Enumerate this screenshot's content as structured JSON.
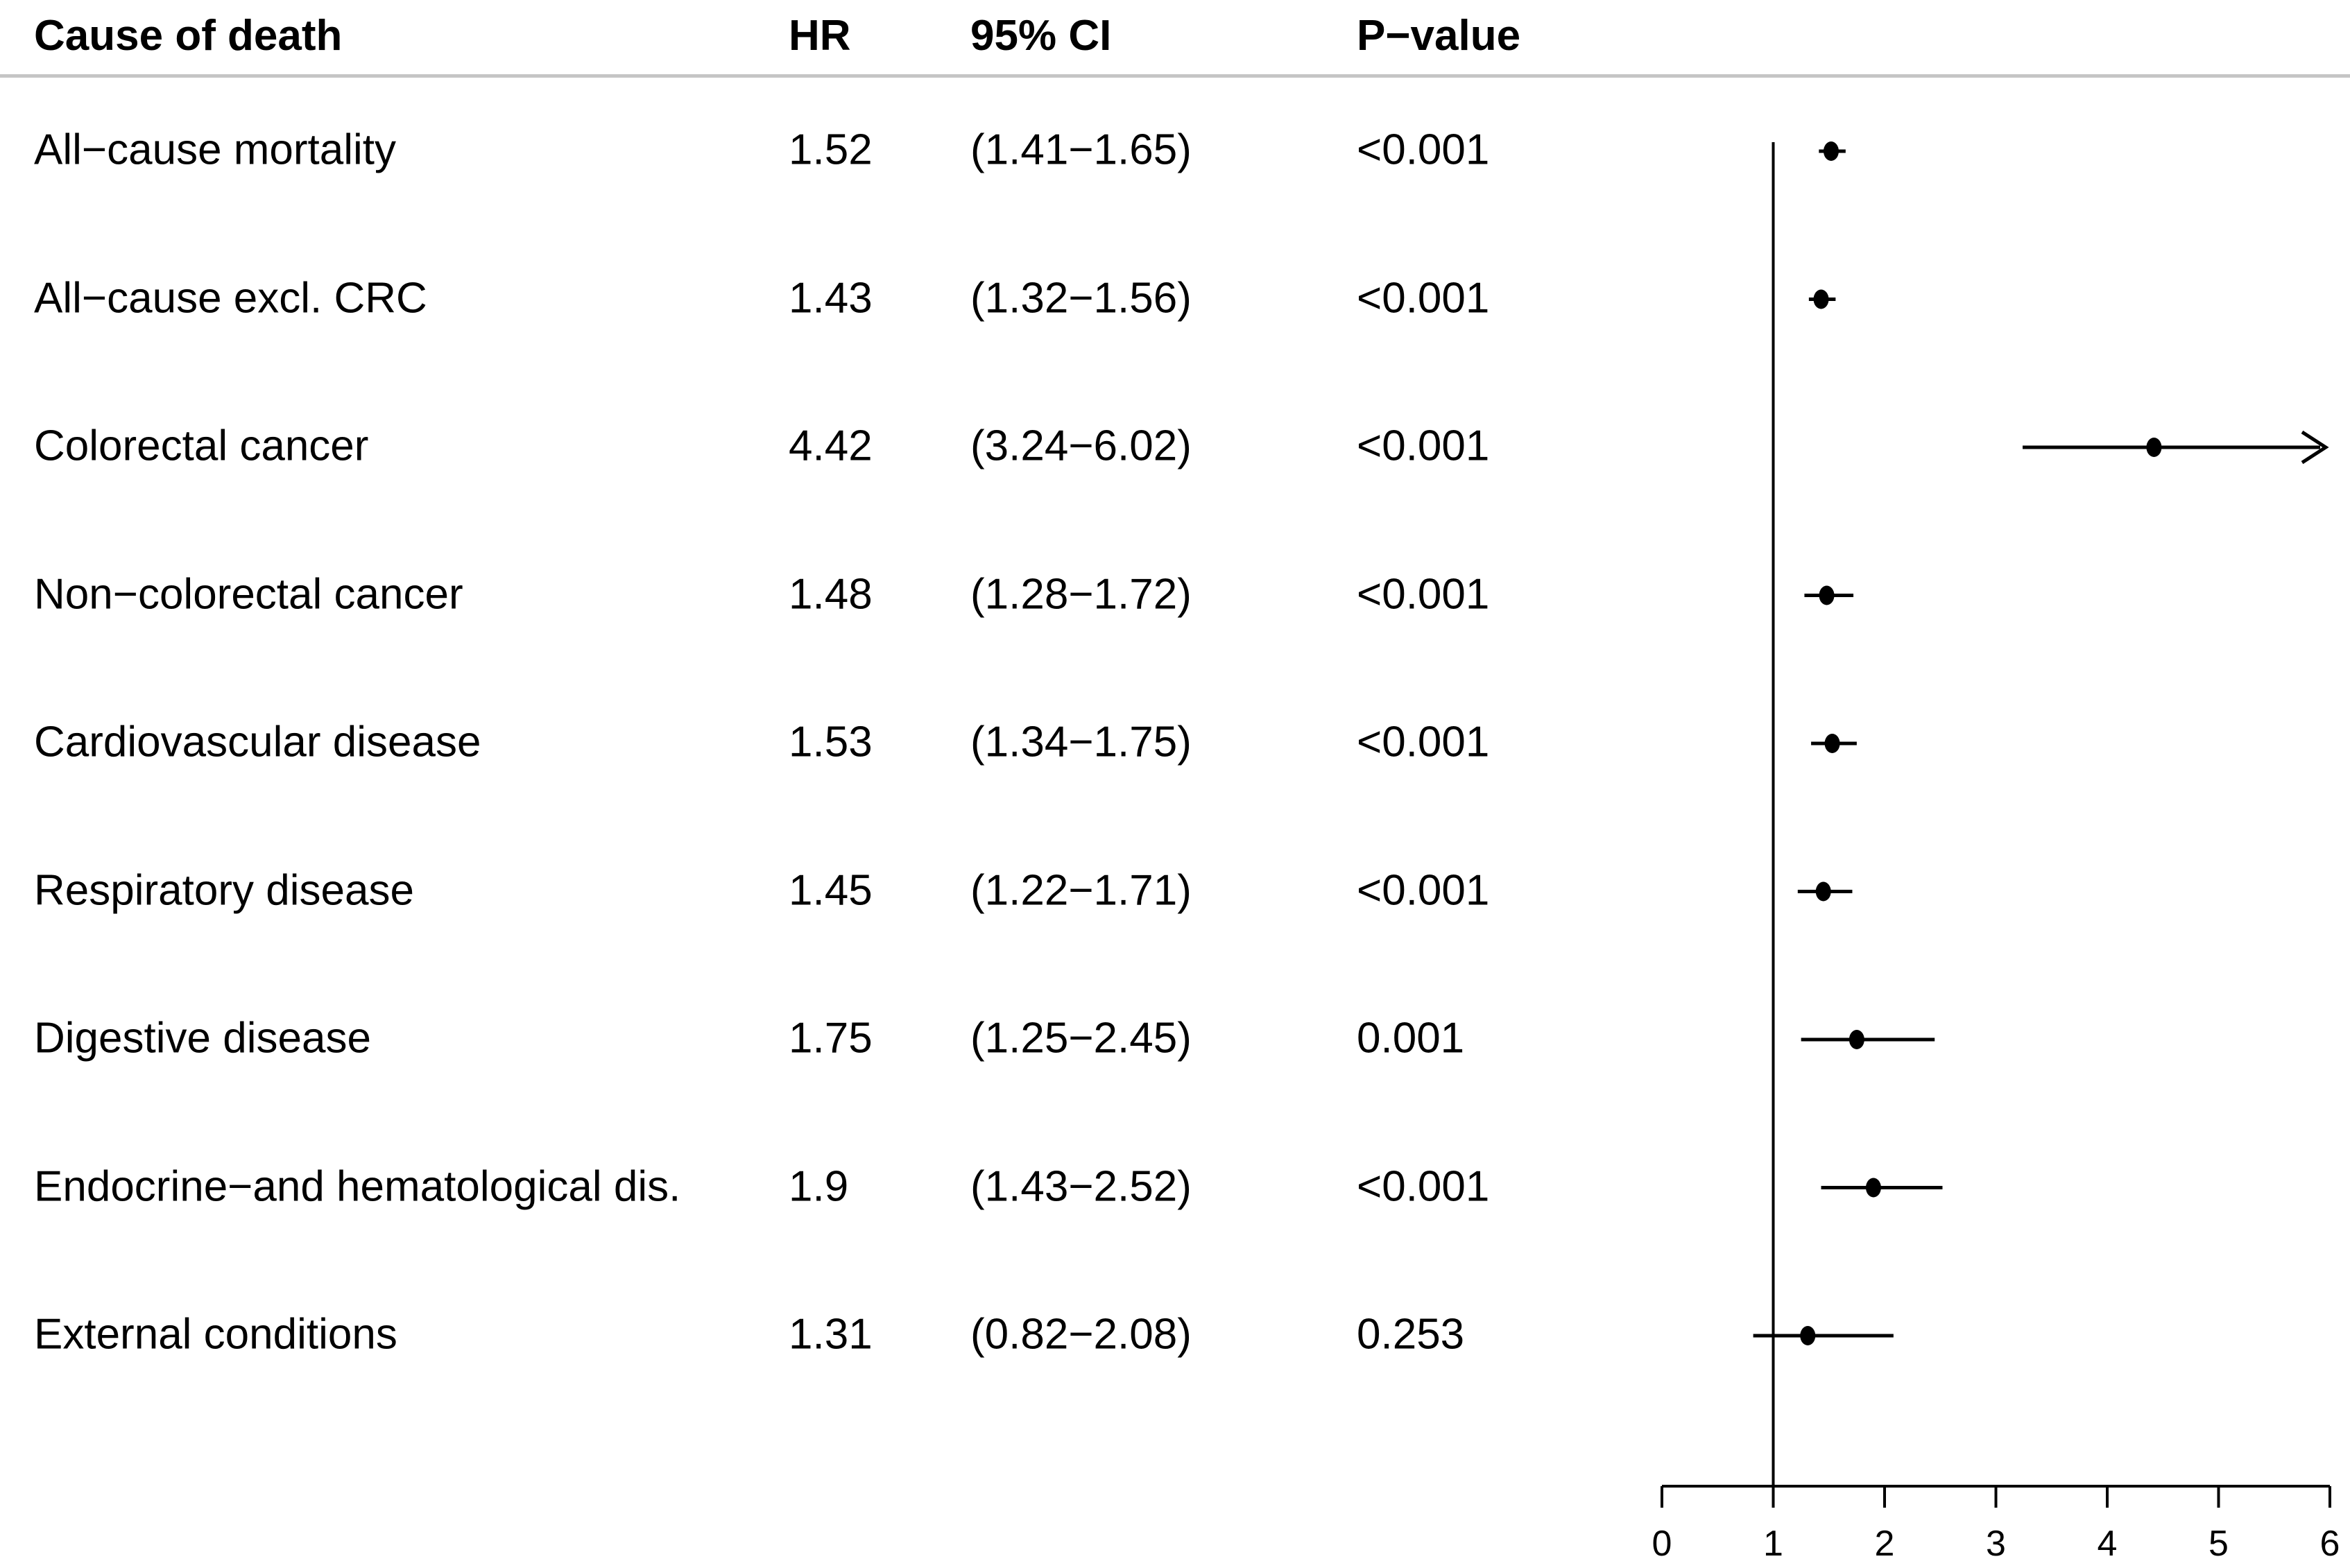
{
  "header": {
    "cause": "Cause of death",
    "hr": "HR",
    "ci": "95% CI",
    "p": "P−value"
  },
  "colors": {
    "text": "#000000",
    "plot_lines": "#000000",
    "separator": "#c5c5c5",
    "marker": "#000000"
  },
  "chart_data": {
    "type": "forest",
    "title": "",
    "xlabel": "",
    "ylabel": "",
    "xlim": [
      0,
      6
    ],
    "x_ticks": [
      0,
      1,
      2,
      3,
      4,
      5,
      6
    ],
    "reference_line": 1,
    "grid": false,
    "legend": "none",
    "categories": [
      "All−cause mortality",
      "All−cause excl. CRC",
      "Colorectal cancer",
      "Non−colorectal cancer",
      "Cardiovascular disease",
      "Respiratory disease",
      "Digestive disease",
      "Endocrine−and hematological dis.",
      "External conditions"
    ],
    "points": [
      {
        "label": "All−cause mortality",
        "hr": 1.52,
        "ci_low": 1.41,
        "ci_high": 1.65,
        "hr_text": "1.52",
        "ci_text": "(1.41−1.65)",
        "p_text": "<0.001"
      },
      {
        "label": "All−cause excl. CRC",
        "hr": 1.43,
        "ci_low": 1.32,
        "ci_high": 1.56,
        "hr_text": "1.43",
        "ci_text": "(1.32−1.56)",
        "p_text": "<0.001"
      },
      {
        "label": "Colorectal cancer",
        "hr": 4.42,
        "ci_low": 3.24,
        "ci_high": 6.02,
        "hr_text": "4.42",
        "ci_text": "(3.24−6.02)",
        "p_text": "<0.001"
      },
      {
        "label": "Non−colorectal cancer",
        "hr": 1.48,
        "ci_low": 1.28,
        "ci_high": 1.72,
        "hr_text": "1.48",
        "ci_text": "(1.28−1.72)",
        "p_text": "<0.001"
      },
      {
        "label": "Cardiovascular disease",
        "hr": 1.53,
        "ci_low": 1.34,
        "ci_high": 1.75,
        "hr_text": "1.53",
        "ci_text": "(1.34−1.75)",
        "p_text": "<0.001"
      },
      {
        "label": "Respiratory disease",
        "hr": 1.45,
        "ci_low": 1.22,
        "ci_high": 1.71,
        "hr_text": "1.45",
        "ci_text": "(1.22−1.71)",
        "p_text": "<0.001"
      },
      {
        "label": "Digestive disease",
        "hr": 1.75,
        "ci_low": 1.25,
        "ci_high": 2.45,
        "hr_text": "1.75",
        "ci_text": "(1.25−2.45)",
        "p_text": "0.001"
      },
      {
        "label": "Endocrine−and hematological dis.",
        "hr": 1.9,
        "ci_low": 1.43,
        "ci_high": 2.52,
        "hr_text": "1.9",
        "ci_text": "(1.43−2.52)",
        "p_text": "<0.001"
      },
      {
        "label": "External conditions",
        "hr": 1.31,
        "ci_low": 0.82,
        "ci_high": 2.08,
        "hr_text": "1.31",
        "ci_text": "(0.82−2.08)",
        "p_text": "0.253"
      }
    ]
  }
}
